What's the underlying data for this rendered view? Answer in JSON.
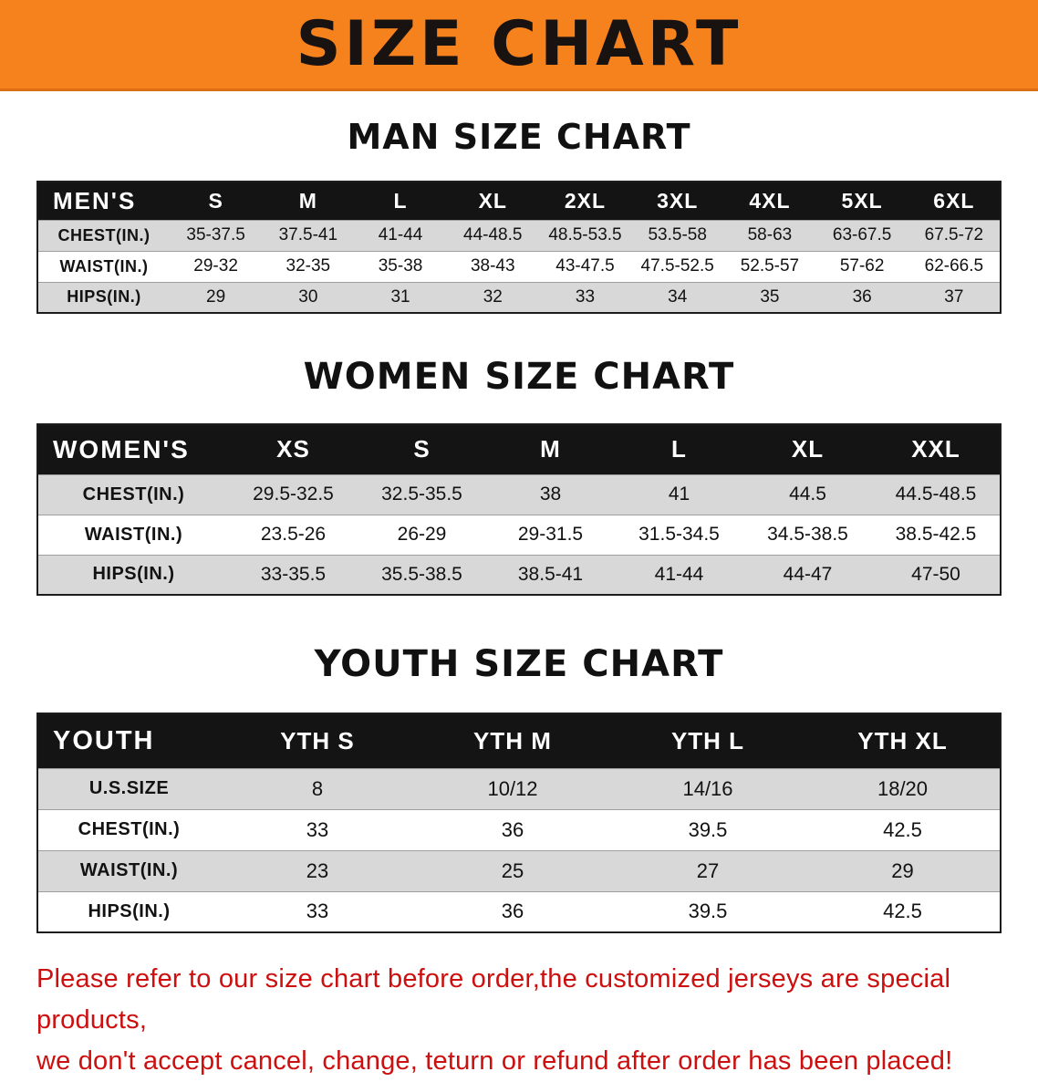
{
  "banner": {
    "title": "SIZE CHART"
  },
  "colors": {
    "banner_bg": "#f6821e",
    "table_header_bg": "#141414",
    "row_alt_bg": "#d8d8d8",
    "disclaimer_text": "#cc0f0f"
  },
  "men": {
    "heading": "MAN SIZE CHART",
    "label": "MEN'S",
    "columns": [
      "S",
      "M",
      "L",
      "XL",
      "2XL",
      "3XL",
      "4XL",
      "5XL",
      "6XL"
    ],
    "rows": [
      {
        "label": "CHEST(IN.)",
        "values": [
          "35-37.5",
          "37.5-41",
          "41-44",
          "44-48.5",
          "48.5-53.5",
          "53.5-58",
          "58-63",
          "63-67.5",
          "67.5-72"
        ]
      },
      {
        "label": "WAIST(IN.)",
        "values": [
          "29-32",
          "32-35",
          "35-38",
          "38-43",
          "43-47.5",
          "47.5-52.5",
          "52.5-57",
          "57-62",
          "62-66.5"
        ]
      },
      {
        "label": "HIPS(IN.)",
        "values": [
          "29",
          "30",
          "31",
          "32",
          "33",
          "34",
          "35",
          "36",
          "37"
        ]
      }
    ]
  },
  "women": {
    "heading": "WOMEN SIZE CHART",
    "label": "WOMEN'S",
    "columns": [
      "XS",
      "S",
      "M",
      "L",
      "XL",
      "XXL"
    ],
    "rows": [
      {
        "label": "CHEST(IN.)",
        "values": [
          "29.5-32.5",
          "32.5-35.5",
          "38",
          "41",
          "44.5",
          "44.5-48.5"
        ]
      },
      {
        "label": "WAIST(IN.)",
        "values": [
          "23.5-26",
          "26-29",
          "29-31.5",
          "31.5-34.5",
          "34.5-38.5",
          "38.5-42.5"
        ]
      },
      {
        "label": "HIPS(IN.)",
        "values": [
          "33-35.5",
          "35.5-38.5",
          "38.5-41",
          "41-44",
          "44-47",
          "47-50"
        ]
      }
    ]
  },
  "youth": {
    "heading": "YOUTH SIZE CHART",
    "label": "YOUTH",
    "columns": [
      "YTH S",
      "YTH M",
      "YTH L",
      "YTH XL"
    ],
    "rows": [
      {
        "label": "U.S.SIZE",
        "values": [
          "8",
          "10/12",
          "14/16",
          "18/20"
        ]
      },
      {
        "label": "CHEST(IN.)",
        "values": [
          "33",
          "36",
          "39.5",
          "42.5"
        ]
      },
      {
        "label": "WAIST(IN.)",
        "values": [
          "23",
          "25",
          "27",
          "29"
        ]
      },
      {
        "label": "HIPS(IN.)",
        "values": [
          "33",
          "36",
          "39.5",
          "42.5"
        ]
      }
    ]
  },
  "disclaimer": {
    "line1": "Please refer to our size chart before order,the customized jerseys are special products,",
    "line2": "we don't accept cancel, change, teturn or refund after order has been placed!"
  }
}
